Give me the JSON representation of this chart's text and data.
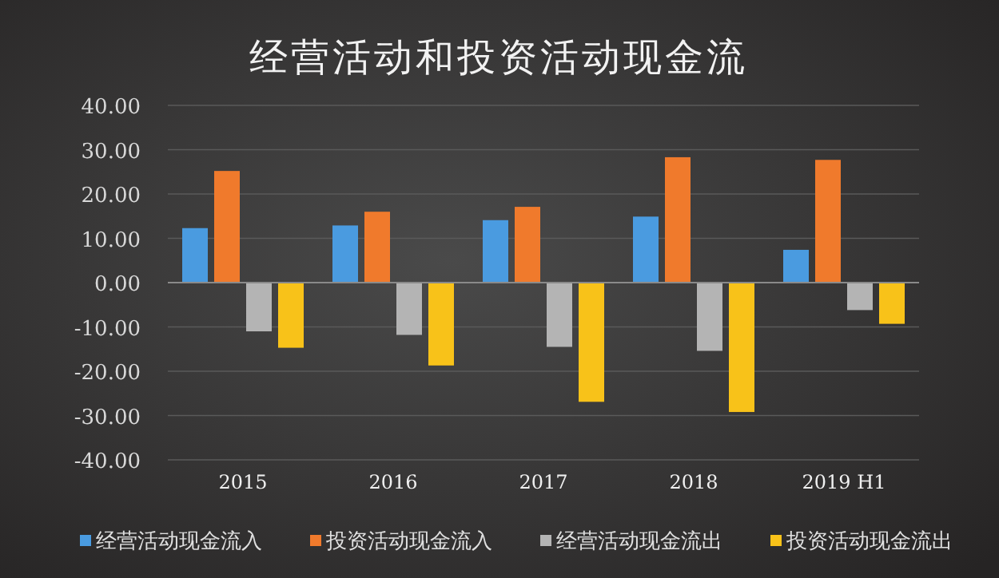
{
  "chart_data": {
    "type": "bar",
    "title": "经营活动和投资活动现金流",
    "categories": [
      "2015",
      "2016",
      "2017",
      "2018",
      "2019 H1"
    ],
    "series": [
      {
        "name": "经营活动现金流入",
        "color": "#4a9be0",
        "values": [
          12.3,
          12.9,
          14.1,
          14.9,
          7.4
        ]
      },
      {
        "name": "投资活动现金流入",
        "color": "#f07a2c",
        "values": [
          25.2,
          16.0,
          17.1,
          28.3,
          27.7
        ]
      },
      {
        "name": "经营活动现金流出",
        "color": "#b4b4b4",
        "values": [
          -11.0,
          -11.8,
          -14.5,
          -15.4,
          -6.2
        ]
      },
      {
        "name": "投资活动现金流出",
        "color": "#f8c219",
        "values": [
          -14.7,
          -18.7,
          -26.9,
          -29.2,
          -9.3
        ]
      }
    ],
    "ylim": [
      -40,
      40
    ],
    "yticks": [
      {
        "value": -40,
        "label": "-40.00"
      },
      {
        "value": -30,
        "label": "-30.00"
      },
      {
        "value": -20,
        "label": "-20.00"
      },
      {
        "value": -10,
        "label": "-10.00"
      },
      {
        "value": 0,
        "label": "0.00"
      },
      {
        "value": 10,
        "label": "10.00"
      },
      {
        "value": 20,
        "label": "20.00"
      },
      {
        "value": 30,
        "label": "30.00"
      },
      {
        "value": 40,
        "label": "40.00"
      }
    ],
    "grid": "y",
    "legend": "bottom"
  }
}
